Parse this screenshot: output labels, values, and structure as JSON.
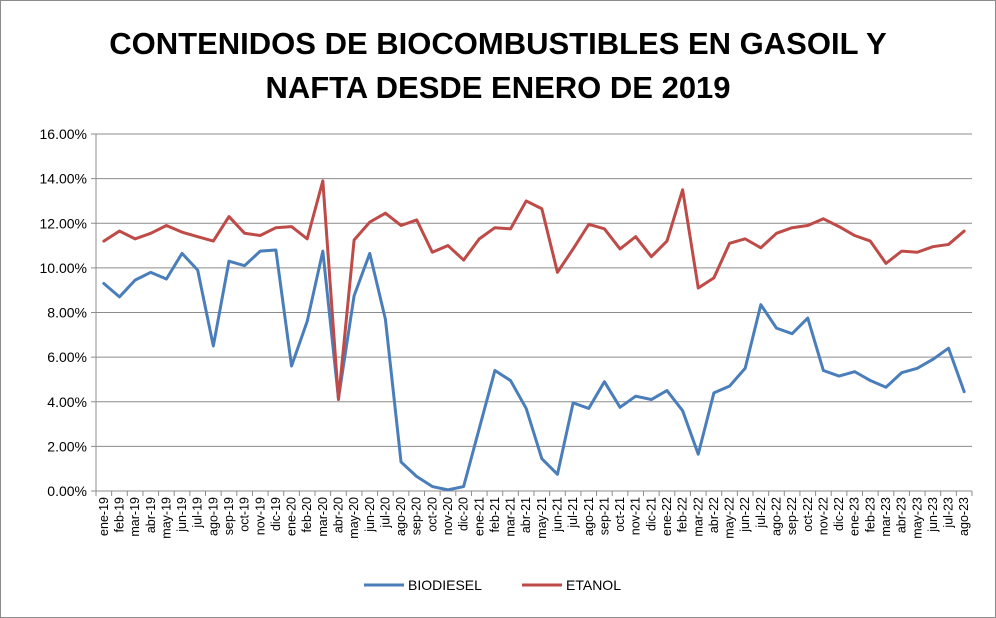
{
  "chart_data": {
    "type": "line",
    "title_lines": [
      "CONTENIDOS DE BIOCOMBUSTIBLES EN GASOIL Y",
      "NAFTA DESDE ENERO DE 2019"
    ],
    "ylim": [
      0,
      16
    ],
    "y_ticks": [
      "0.00%",
      "2.00%",
      "4.00%",
      "6.00%",
      "8.00%",
      "10.00%",
      "12.00%",
      "14.00%",
      "16.00%"
    ],
    "y_tick_values": [
      0,
      2,
      4,
      6,
      8,
      10,
      12,
      14,
      16
    ],
    "grid": "horizontal",
    "legend_position": "bottom",
    "categories": [
      "ene-19",
      "feb-19",
      "mar-19",
      "abr-19",
      "may-19",
      "jun-19",
      "jul-19",
      "ago-19",
      "sep-19",
      "oct-19",
      "nov-19",
      "dic-19",
      "ene-20",
      "feb-20",
      "mar-20",
      "abr-20",
      "may-20",
      "jun-20",
      "jul-20",
      "ago-20",
      "sep-20",
      "oct-20",
      "nov-20",
      "dic-20",
      "ene-21",
      "feb-21",
      "mar-21",
      "abr-21",
      "may-21",
      "jun-21",
      "jul-21",
      "ago-21",
      "sep-21",
      "oct-21",
      "nov-21",
      "dic-21",
      "ene-22",
      "feb-22",
      "mar-22",
      "abr-22",
      "may-22",
      "jun-22",
      "jul-22",
      "ago-22",
      "sep-22",
      "oct-22",
      "nov-22",
      "dic-22",
      "ene-23",
      "feb-23",
      "mar-23",
      "abr-23",
      "may-23",
      "jun-23",
      "jul-23",
      "ago-23"
    ],
    "series": [
      {
        "name": "BIODIESEL",
        "color": "#4a7ebb",
        "values": [
          9.3,
          8.7,
          9.45,
          9.8,
          9.5,
          10.65,
          9.9,
          6.5,
          10.3,
          10.1,
          10.75,
          10.8,
          5.6,
          7.6,
          10.75,
          4.15,
          8.75,
          10.65,
          7.7,
          1.3,
          0.65,
          0.2,
          0.05,
          0.2,
          2.8,
          5.4,
          4.95,
          3.7,
          1.45,
          0.75,
          3.95,
          3.7,
          4.9,
          3.75,
          4.25,
          4.1,
          4.5,
          3.6,
          1.65,
          4.4,
          4.7,
          5.5,
          8.35,
          7.3,
          7.05,
          7.75,
          5.4,
          5.15,
          5.35,
          4.95,
          4.65,
          5.3,
          5.5,
          5.9,
          6.4,
          4.45
        ]
      },
      {
        "name": "ETANOL",
        "color": "#be4b48",
        "values": [
          11.2,
          11.65,
          11.3,
          11.55,
          11.9,
          11.6,
          11.4,
          11.2,
          12.3,
          11.55,
          11.45,
          11.8,
          11.85,
          11.3,
          13.9,
          4.1,
          11.25,
          12.05,
          12.45,
          11.9,
          12.15,
          10.7,
          11.0,
          10.35,
          11.3,
          11.8,
          11.75,
          13.0,
          12.65,
          9.8,
          10.85,
          11.95,
          11.75,
          10.85,
          11.4,
          10.5,
          11.2,
          13.5,
          9.1,
          9.55,
          11.1,
          11.3,
          10.9,
          11.55,
          11.8,
          11.9,
          12.2,
          11.85,
          11.45,
          11.2,
          10.2,
          10.75,
          10.7,
          10.95,
          11.05,
          11.65
        ]
      }
    ]
  }
}
